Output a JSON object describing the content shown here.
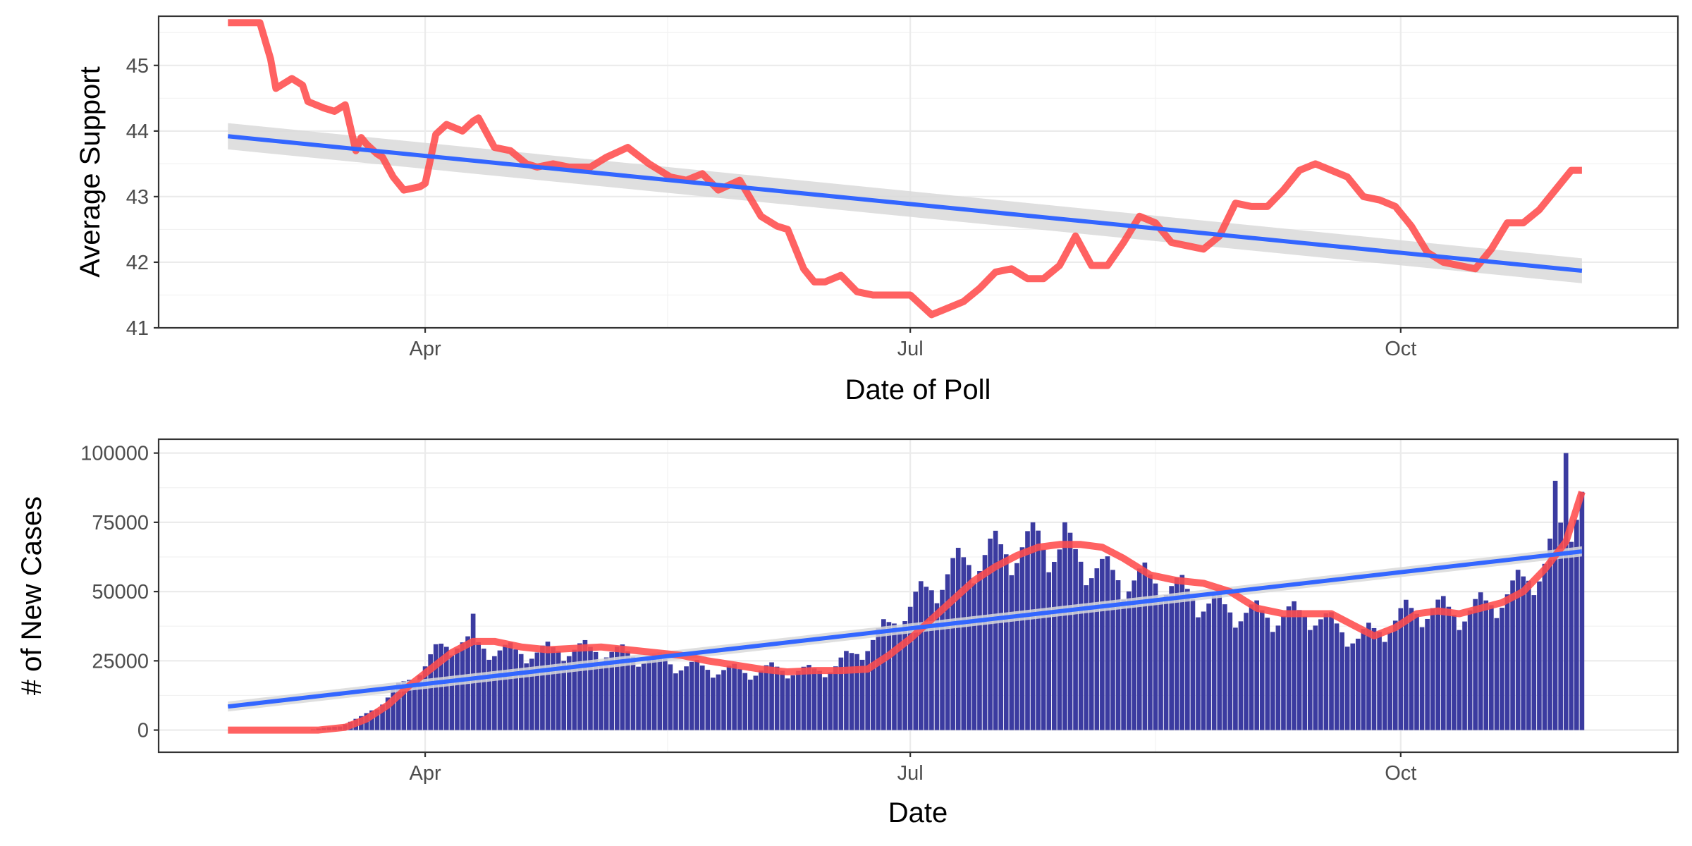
{
  "chart_data": [
    {
      "type": "line",
      "xlabel": "Date of Poll",
      "ylabel": "Average Support",
      "xlim": [
        "2020-02-11",
        "2020-11-22"
      ],
      "ylim": [
        41.0,
        45.75
      ],
      "x_tick_labels": [
        "Apr",
        "Jul",
        "Oct"
      ],
      "x_ticks": [
        "2020-04-01",
        "2020-07-01",
        "2020-10-01"
      ],
      "y_tick_labels": [
        "41",
        "42",
        "43",
        "44",
        "45"
      ],
      "y_ticks": [
        41,
        42,
        43,
        44,
        45
      ],
      "grid": true,
      "series": [
        {
          "kind": "line",
          "color": "#ff4c4c",
          "x": [
            "2020-02-24",
            "2020-03-01",
            "2020-03-03",
            "2020-03-04",
            "2020-03-07",
            "2020-03-09",
            "2020-03-10",
            "2020-03-13",
            "2020-03-15",
            "2020-03-17",
            "2020-03-19",
            "2020-03-20",
            "2020-03-21",
            "2020-03-23",
            "2020-03-24",
            "2020-03-26",
            "2020-03-28",
            "2020-03-31",
            "2020-04-01",
            "2020-04-03",
            "2020-04-05",
            "2020-04-08",
            "2020-04-10",
            "2020-04-11",
            "2020-04-14",
            "2020-04-17",
            "2020-04-20",
            "2020-04-22",
            "2020-04-25",
            "2020-04-28",
            "2020-05-02",
            "2020-05-05",
            "2020-05-09",
            "2020-05-13",
            "2020-05-17",
            "2020-05-20",
            "2020-05-23",
            "2020-05-26",
            "2020-05-30",
            "2020-06-03",
            "2020-06-06",
            "2020-06-08",
            "2020-06-11",
            "2020-06-13",
            "2020-06-15",
            "2020-06-18",
            "2020-06-21",
            "2020-06-24",
            "2020-06-27",
            "2020-07-01",
            "2020-07-05",
            "2020-07-08",
            "2020-07-11",
            "2020-07-14",
            "2020-07-17",
            "2020-07-20",
            "2020-07-23",
            "2020-07-26",
            "2020-07-29",
            "2020-08-01",
            "2020-08-04",
            "2020-08-07",
            "2020-08-10",
            "2020-08-13",
            "2020-08-16",
            "2020-08-19",
            "2020-08-22",
            "2020-08-25",
            "2020-08-28",
            "2020-08-31",
            "2020-09-03",
            "2020-09-06",
            "2020-09-09",
            "2020-09-12",
            "2020-09-15",
            "2020-09-18",
            "2020-09-21",
            "2020-09-24",
            "2020-09-27",
            "2020-09-30",
            "2020-10-03",
            "2020-10-06",
            "2020-10-09",
            "2020-10-12",
            "2020-10-15",
            "2020-10-18",
            "2020-10-21",
            "2020-10-24",
            "2020-10-27",
            "2020-10-30",
            "2020-11-02",
            "2020-11-04"
          ],
          "y": [
            45.65,
            45.65,
            45.1,
            44.65,
            44.8,
            44.7,
            44.45,
            44.35,
            44.3,
            44.4,
            43.7,
            43.9,
            43.8,
            43.65,
            43.6,
            43.3,
            43.1,
            43.15,
            43.2,
            43.95,
            44.1,
            44.0,
            44.15,
            44.2,
            43.75,
            43.7,
            43.5,
            43.45,
            43.5,
            43.45,
            43.45,
            43.6,
            43.75,
            43.5,
            43.3,
            43.25,
            43.35,
            43.1,
            43.25,
            42.7,
            42.55,
            42.5,
            41.9,
            41.7,
            41.7,
            41.8,
            41.55,
            41.5,
            41.5,
            41.5,
            41.2,
            41.3,
            41.4,
            41.6,
            41.85,
            41.9,
            41.75,
            41.75,
            41.95,
            42.4,
            41.95,
            41.95,
            42.3,
            42.7,
            42.6,
            42.3,
            42.25,
            42.2,
            42.4,
            42.9,
            42.85,
            42.85,
            43.1,
            43.4,
            43.5,
            43.4,
            43.3,
            43.0,
            42.95,
            42.85,
            42.55,
            42.15,
            42.0,
            41.95,
            41.9,
            42.2,
            42.6,
            42.6,
            42.8,
            43.1,
            43.4,
            43.4
          ]
        },
        {
          "kind": "trend",
          "color": "#3366ff",
          "ci_color": "#d9d9d9",
          "x": [
            "2020-02-24",
            "2020-11-04"
          ],
          "y": [
            43.92,
            41.87
          ],
          "ci_lower": [
            43.72,
            41.68
          ],
          "ci_upper": [
            44.12,
            42.06
          ]
        }
      ]
    },
    {
      "type": "bar",
      "xlabel": "Date",
      "ylabel": "# of New Cases",
      "xlim": [
        "2020-02-11",
        "2020-11-22"
      ],
      "ylim": [
        -8000,
        105000
      ],
      "x_tick_labels": [
        "Apr",
        "Jul",
        "Oct"
      ],
      "x_ticks": [
        "2020-04-01",
        "2020-07-01",
        "2020-10-01"
      ],
      "y_tick_labels": [
        "0",
        "25000",
        "50000",
        "75000",
        "100000"
      ],
      "y_ticks": [
        0,
        25000,
        50000,
        75000,
        100000
      ],
      "grid": true,
      "bar_color": "#3b3ba0",
      "bars": {
        "start_date": "2020-02-24",
        "end_date": "2020-11-04",
        "anchor_dates": [
          "2020-02-24",
          "2020-03-10",
          "2020-03-16",
          "2020-03-20",
          "2020-03-24",
          "2020-03-28",
          "2020-04-01",
          "2020-04-04",
          "2020-04-07",
          "2020-04-10",
          "2020-04-14",
          "2020-04-18",
          "2020-04-22",
          "2020-04-26",
          "2020-05-01",
          "2020-05-05",
          "2020-05-10",
          "2020-05-15",
          "2020-05-20",
          "2020-05-25",
          "2020-05-31",
          "2020-06-06",
          "2020-06-12",
          "2020-06-17",
          "2020-06-21",
          "2020-06-25",
          "2020-06-29",
          "2020-07-03",
          "2020-07-07",
          "2020-07-11",
          "2020-07-16",
          "2020-07-20",
          "2020-07-24",
          "2020-07-28",
          "2020-08-02",
          "2020-08-07",
          "2020-08-12",
          "2020-08-17",
          "2020-08-22",
          "2020-08-28",
          "2020-09-03",
          "2020-09-08",
          "2020-09-14",
          "2020-09-18",
          "2020-09-23",
          "2020-09-28",
          "2020-10-02",
          "2020-10-07",
          "2020-10-12",
          "2020-10-17",
          "2020-10-22",
          "2020-10-25",
          "2020-10-28",
          "2020-10-31",
          "2020-11-04"
        ],
        "anchor_values": [
          0,
          0,
          1500,
          4500,
          10000,
          17000,
          23000,
          30000,
          32000,
          31000,
          29000,
          28000,
          28000,
          29000,
          29000,
          28500,
          27000,
          25000,
          23000,
          22000,
          21000,
          22000,
          21000,
          23000,
          28000,
          34000,
          41000,
          48000,
          55000,
          60000,
          64000,
          65000,
          67000,
          66000,
          62000,
          56000,
          54000,
          54000,
          49000,
          44000,
          42000,
          41000,
          42000,
          38000,
          33000,
          37000,
          42000,
          44000,
          42000,
          45000,
          50000,
          55000,
          60000,
          72000,
          86000
        ],
        "spike_dates": [
          "2020-04-10",
          "2020-07-24",
          "2020-07-25",
          "2020-07-30",
          "2020-10-30",
          "2020-11-01"
        ],
        "spike_values": [
          42000,
          75000,
          72000,
          75000,
          90000,
          100000
        ]
      },
      "series": [
        {
          "kind": "moving-average",
          "color": "#ff4c4c",
          "x": [
            "2020-02-24",
            "2020-03-12",
            "2020-03-17",
            "2020-03-21",
            "2020-03-25",
            "2020-03-29",
            "2020-04-02",
            "2020-04-06",
            "2020-04-10",
            "2020-04-14",
            "2020-04-19",
            "2020-04-24",
            "2020-04-29",
            "2020-05-04",
            "2020-05-09",
            "2020-05-14",
            "2020-05-19",
            "2020-05-24",
            "2020-05-29",
            "2020-06-03",
            "2020-06-08",
            "2020-06-13",
            "2020-06-18",
            "2020-06-23",
            "2020-06-27",
            "2020-07-01",
            "2020-07-05",
            "2020-07-09",
            "2020-07-13",
            "2020-07-17",
            "2020-07-21",
            "2020-07-25",
            "2020-07-29",
            "2020-08-02",
            "2020-08-06",
            "2020-08-10",
            "2020-08-15",
            "2020-08-20",
            "2020-08-25",
            "2020-08-30",
            "2020-09-04",
            "2020-09-09",
            "2020-09-14",
            "2020-09-18",
            "2020-09-22",
            "2020-09-26",
            "2020-09-30",
            "2020-10-04",
            "2020-10-08",
            "2020-10-12",
            "2020-10-16",
            "2020-10-20",
            "2020-10-24",
            "2020-10-28",
            "2020-11-01",
            "2020-11-04"
          ],
          "y": [
            0,
            0,
            1000,
            4000,
            9000,
            16000,
            22000,
            28000,
            32000,
            32000,
            30000,
            29000,
            29500,
            30000,
            29000,
            28000,
            27000,
            25000,
            23500,
            22000,
            21000,
            21500,
            21500,
            22000,
            27000,
            33000,
            40000,
            47000,
            54000,
            59000,
            63000,
            66000,
            67000,
            67000,
            66000,
            62000,
            56000,
            54000,
            53000,
            50000,
            44000,
            42000,
            42000,
            42000,
            38000,
            34000,
            37000,
            42000,
            43000,
            42000,
            44000,
            46000,
            50000,
            58000,
            68000,
            86000
          ]
        },
        {
          "kind": "trend",
          "color": "#3366ff",
          "ci_color": "#d9d9d9",
          "x": [
            "2020-02-24",
            "2020-11-04"
          ],
          "y": [
            8500,
            64500
          ],
          "ci_lower": [
            6700,
            62700
          ],
          "ci_upper": [
            10300,
            66300
          ]
        }
      ]
    }
  ]
}
